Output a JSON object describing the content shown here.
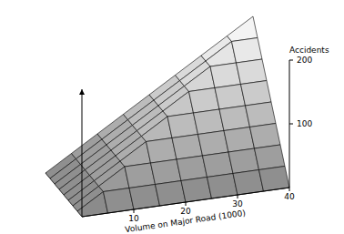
{
  "chart_data": {
    "type": "surface",
    "xlabel": "Volume on Major Road (1000)",
    "ylabel": "Accidents",
    "x": [
      0,
      5,
      10,
      15,
      20,
      25,
      30,
      35,
      40
    ],
    "depth": [
      0,
      5,
      10,
      15,
      20,
      25,
      30,
      35,
      40
    ],
    "values": [
      [
        0,
        0,
        0,
        0,
        0,
        0,
        0,
        0,
        0
      ],
      [
        0,
        25,
        25,
        25,
        25,
        25,
        25,
        25,
        25
      ],
      [
        0,
        25,
        50,
        50,
        50,
        50,
        50,
        50,
        50
      ],
      [
        0,
        25,
        50,
        75,
        75,
        75,
        75,
        75,
        75
      ],
      [
        0,
        25,
        50,
        75,
        100,
        100,
        100,
        100,
        100
      ],
      [
        0,
        25,
        50,
        75,
        100,
        125,
        125,
        125,
        125
      ],
      [
        0,
        25,
        50,
        75,
        100,
        125,
        150,
        150,
        150
      ],
      [
        0,
        25,
        50,
        75,
        100,
        125,
        150,
        175,
        175
      ],
      [
        0,
        25,
        50,
        75,
        100,
        125,
        150,
        175,
        200
      ]
    ],
    "xlim": [
      0,
      40
    ],
    "xticks": [
      10,
      20,
      30,
      40
    ],
    "ylim": [
      0,
      200
    ],
    "yticks": [
      100,
      200
    ],
    "color": "#000000"
  }
}
